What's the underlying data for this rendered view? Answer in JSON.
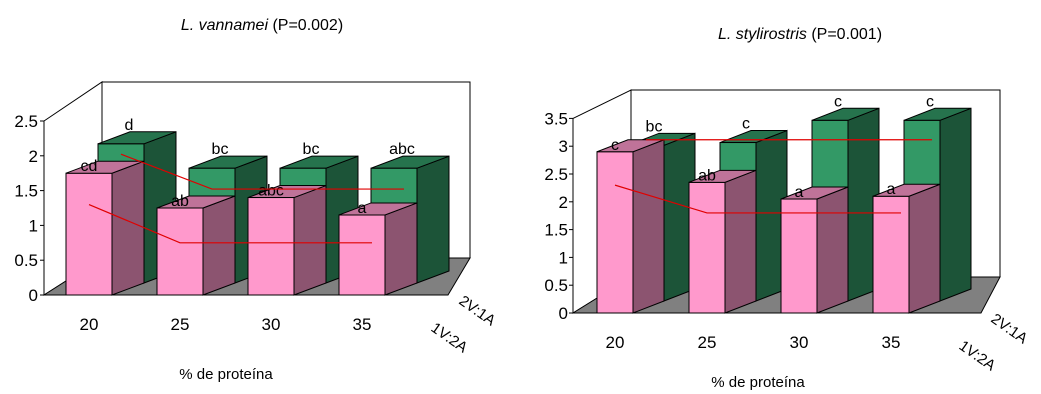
{
  "chart_data": [
    {
      "type": "bar",
      "title_species": "L. vannamei",
      "title_p": " (P=0.002)",
      "xlabel": "% de proteína",
      "ylabel": "",
      "categories": [
        "20",
        "25",
        "30",
        "35"
      ],
      "ylim": [
        0,
        2.5
      ],
      "yticks": [
        "0",
        "0.5",
        "1",
        "1.5",
        "2",
        "2.5"
      ],
      "depth_labels": [
        "1V:2A",
        "2V:1A"
      ],
      "series": [
        {
          "name": "1V:2A",
          "color": "#ff99cc",
          "values": [
            1.75,
            1.25,
            1.4,
            1.15
          ],
          "letters": [
            "cd",
            "ab",
            "abc",
            "a"
          ]
        },
        {
          "name": "2V:1A",
          "color": "#339966",
          "values": [
            2.0,
            1.65,
            1.65,
            1.65
          ],
          "letters": [
            "d",
            "bc",
            "bc",
            "abc"
          ]
        }
      ],
      "trend_lines": [
        {
          "series": "1V:2A",
          "points": [
            [
              20,
              1.3
            ],
            [
              25,
              0.75
            ],
            [
              35,
              0.75
            ]
          ]
        },
        {
          "series": "2V:1A",
          "points": [
            [
              20,
              1.85
            ],
            [
              25,
              1.35
            ],
            [
              35,
              1.35
            ]
          ]
        }
      ],
      "grid": false
    },
    {
      "type": "bar",
      "title_species": "L. stylirostris",
      "title_p": " (P=0.001)",
      "xlabel": "% de proteína",
      "ylabel": "",
      "categories": [
        "20",
        "25",
        "30",
        "35"
      ],
      "ylim": [
        0,
        3.5
      ],
      "yticks": [
        "0",
        "0.5",
        "1",
        "1.5",
        "2",
        "2.5",
        "3",
        "3.5"
      ],
      "depth_labels": [
        "1V:2A",
        "2V:1A"
      ],
      "series": [
        {
          "name": "1V:2A",
          "color": "#ff99cc",
          "values": [
            2.9,
            2.35,
            2.05,
            2.1
          ],
          "letters": [
            "c",
            "ab",
            "a",
            "a"
          ]
        },
        {
          "name": "2V:1A",
          "color": "#339966",
          "values": [
            2.8,
            2.85,
            3.25,
            3.25
          ],
          "letters": [
            "bc",
            "c",
            "c",
            "c"
          ]
        }
      ],
      "trend_lines": [
        {
          "series": "1V:2A",
          "points": [
            [
              20,
              2.3
            ],
            [
              25,
              1.8
            ],
            [
              35,
              1.8
            ]
          ]
        },
        {
          "series": "2V:1A",
          "points": [
            [
              20,
              2.9
            ],
            [
              35,
              2.9
            ]
          ]
        }
      ],
      "grid": false
    }
  ]
}
